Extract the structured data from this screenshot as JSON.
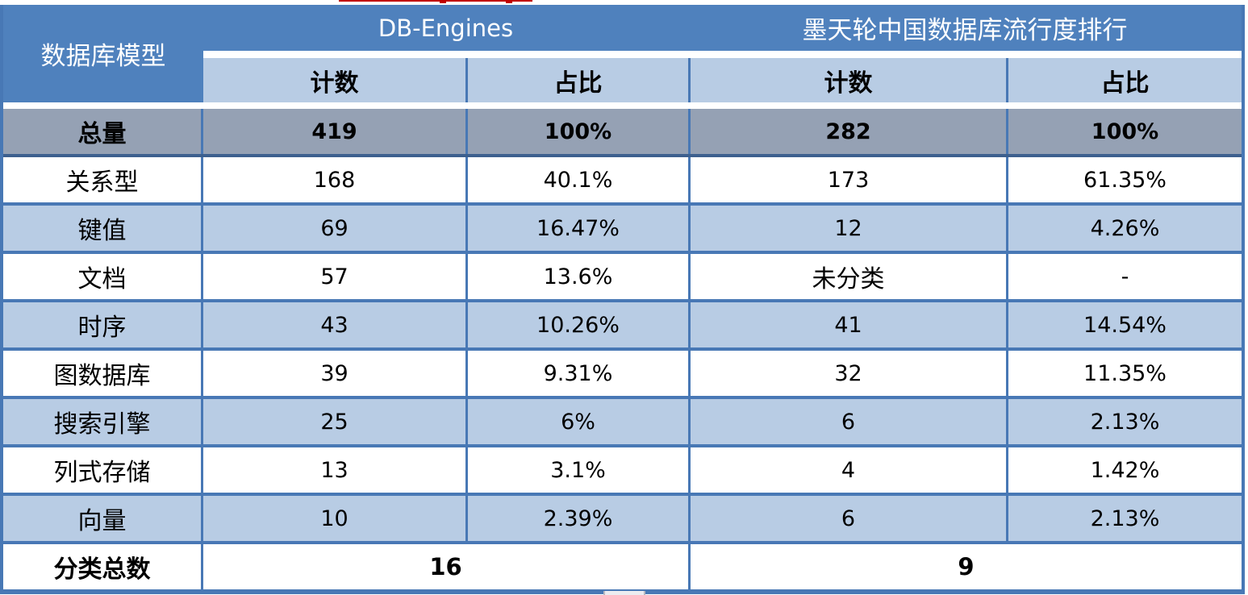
{
  "colors": {
    "header_blue": "#4F81BD",
    "light_blue": "#B8CCE4",
    "total_row_gray": "#95A1B4",
    "border_blue": "#4878B5",
    "red_fragment": "#C00000"
  },
  "chart_data": {
    "type": "table",
    "col_header": "数据库模型",
    "group_headers": [
      "DB-Engines",
      "墨天轮中国数据库流行度排行"
    ],
    "sub_headers": [
      "计数",
      "占比",
      "计数",
      "占比"
    ],
    "rows": [
      {
        "label": "总量",
        "db_count": "419",
        "db_pct": "100%",
        "mt_count": "282",
        "mt_pct": "100%"
      },
      {
        "label": "关系型",
        "db_count": "168",
        "db_pct": "40.1%",
        "mt_count": "173",
        "mt_pct": "61.35%"
      },
      {
        "label": "键值",
        "db_count": "69",
        "db_pct": "16.47%",
        "mt_count": "12",
        "mt_pct": "4.26%"
      },
      {
        "label": "文档",
        "db_count": "57",
        "db_pct": "13.6%",
        "mt_count": "未分类",
        "mt_pct": "-"
      },
      {
        "label": "时序",
        "db_count": "43",
        "db_pct": "10.26%",
        "mt_count": "41",
        "mt_pct": "14.54%"
      },
      {
        "label": "图数据库",
        "db_count": "39",
        "db_pct": "9.31%",
        "mt_count": "32",
        "mt_pct": "11.35%"
      },
      {
        "label": "搜索引擎",
        "db_count": "25",
        "db_pct": "6%",
        "mt_count": "6",
        "mt_pct": "2.13%"
      },
      {
        "label": "列式存储",
        "db_count": "13",
        "db_pct": "3.1%",
        "mt_count": "4",
        "mt_pct": "1.42%"
      },
      {
        "label": "向量",
        "db_count": "10",
        "db_pct": "2.39%",
        "mt_count": "6",
        "mt_pct": "2.13%"
      }
    ],
    "footer": {
      "label": "分类总数",
      "db_engines_total": "16",
      "motianlun_total": "9"
    }
  }
}
